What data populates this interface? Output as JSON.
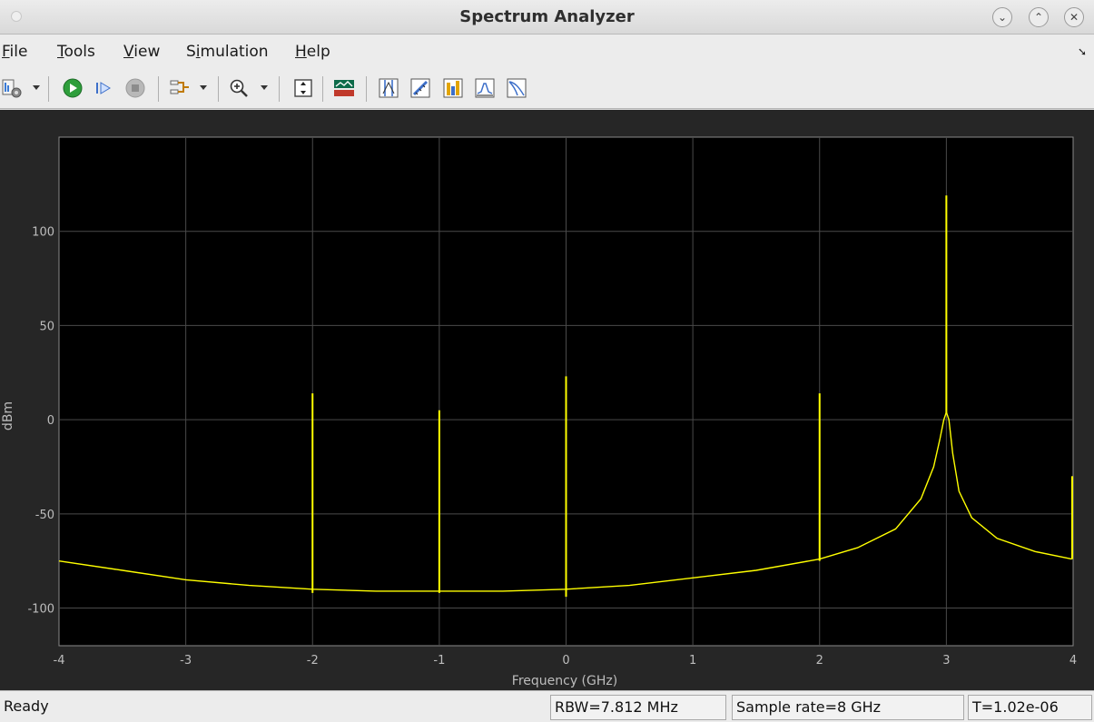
{
  "window": {
    "title": "Spectrum Analyzer"
  },
  "window_controls": [
    {
      "name": "minimize-button",
      "glyph": "⌄"
    },
    {
      "name": "maximize-button",
      "glyph": "⌃"
    },
    {
      "name": "close-button",
      "glyph": "✕"
    }
  ],
  "menubar": {
    "items": [
      {
        "label": "File",
        "mnemonic_index": 0
      },
      {
        "label": "Tools",
        "mnemonic_index": 0
      },
      {
        "label": "View",
        "mnemonic_index": 0
      },
      {
        "label": "Simulation",
        "mnemonic_index": 1
      },
      {
        "label": "Help",
        "mnemonic_index": 0
      }
    ]
  },
  "toolbar": {
    "buttons": [
      "settings-icon",
      "run-icon",
      "step-forward-icon",
      "stop-icon",
      "signal-select-icon",
      "zoom-in-icon",
      "scale-axes-icon",
      "spectrum-view-icon",
      "data-cursors-icon",
      "measure-icon",
      "peak-finder-icon",
      "channel-measurements-icon",
      "ccdf-icon"
    ]
  },
  "chart_data": {
    "type": "line",
    "title": "",
    "xlabel": "Frequency (GHz)",
    "ylabel": "dBm",
    "xlim": [
      -4,
      4
    ],
    "ylim": [
      -120,
      150
    ],
    "xticks": [
      -4,
      -3,
      -2,
      -1,
      0,
      1,
      2,
      3,
      4
    ],
    "yticks": [
      -100,
      -50,
      0,
      50,
      100
    ],
    "grid": true,
    "series": [
      {
        "color": "#ffff00",
        "noise_floor": {
          "x": [
            -4,
            -3.5,
            -3,
            -2.5,
            -2,
            -1.5,
            -1,
            -0.5,
            0,
            0.5,
            1,
            1.5,
            2,
            2.3,
            2.6,
            2.8,
            2.9,
            2.95,
            2.98,
            3.0,
            3.02,
            3.05,
            3.1,
            3.2,
            3.4,
            3.7,
            3.99
          ],
          "y": [
            -75,
            -80,
            -85,
            -88,
            -90,
            -91,
            -91,
            -91,
            -90,
            -88,
            -84,
            -80,
            -74,
            -68,
            -58,
            -42,
            -25,
            -10,
            0,
            4,
            0,
            -18,
            -38,
            -52,
            -63,
            -70,
            -74
          ]
        },
        "spurs": [
          {
            "x": -2.0,
            "peak": 14,
            "dip": -92
          },
          {
            "x": -1.0,
            "peak": 5,
            "dip": -92
          },
          {
            "x": 0.0,
            "peak": 23,
            "dip": -94
          },
          {
            "x": 2.0,
            "peak": 14,
            "dip": -75
          },
          {
            "x": 3.0,
            "peak": 119,
            "dip": 3
          },
          {
            "x": 4.0,
            "peak": -30,
            "dip": -74
          }
        ]
      }
    ]
  },
  "statusbar": {
    "state": "Ready",
    "rbw": "RBW=7.812 MHz",
    "sample_rate": "Sample rate=8 GHz",
    "time": "T=1.02e-06"
  }
}
